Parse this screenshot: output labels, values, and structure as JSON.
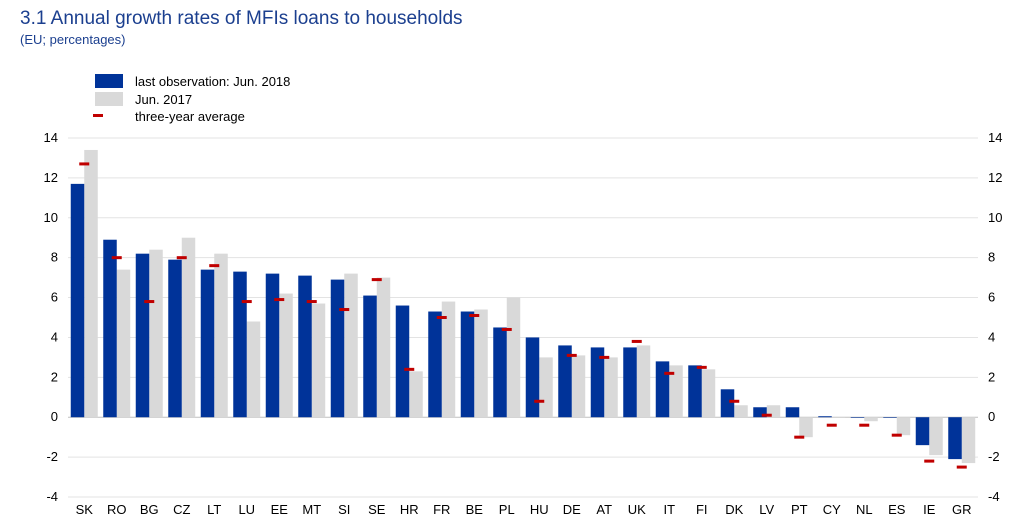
{
  "chart_data": {
    "type": "bar",
    "title": "3.1 Annual growth rates of MFIs loans to households",
    "subtitle": "(EU; percentages)",
    "xlabel": "",
    "ylabel": "",
    "ylim": [
      -4,
      14
    ],
    "yticks": [
      -4,
      -2,
      0,
      2,
      4,
      6,
      8,
      10,
      12,
      14
    ],
    "grid": true,
    "legend_placement": "top-left",
    "categories": [
      "SK",
      "RO",
      "BG",
      "CZ",
      "LT",
      "LU",
      "EE",
      "MT",
      "SI",
      "SE",
      "HR",
      "FR",
      "BE",
      "PL",
      "HU",
      "DE",
      "AT",
      "UK",
      "IT",
      "FI",
      "DK",
      "LV",
      "PT",
      "CY",
      "NL",
      "ES",
      "IE",
      "GR"
    ],
    "series": [
      {
        "name": "last observation: Jun. 2018",
        "color": "#003399",
        "marker": "bar",
        "values": [
          11.7,
          8.9,
          8.2,
          7.9,
          7.4,
          7.3,
          7.2,
          7.1,
          6.9,
          6.1,
          5.6,
          5.3,
          5.3,
          4.5,
          4.0,
          3.6,
          3.5,
          3.5,
          2.8,
          2.6,
          1.4,
          0.5,
          0.5,
          0.05,
          0.0,
          0.0,
          -1.4,
          -2.1
        ]
      },
      {
        "name": "Jun. 2017",
        "color": "#d9d9d9",
        "marker": "bar",
        "values": [
          13.4,
          7.4,
          8.4,
          9.0,
          8.2,
          4.8,
          6.2,
          5.7,
          7.2,
          7.0,
          2.3,
          5.8,
          5.4,
          6.0,
          3.0,
          3.1,
          3.0,
          3.6,
          2.6,
          2.4,
          0.6,
          0.6,
          -1.0,
          0.0,
          -0.2,
          -0.9,
          -1.9,
          -2.3
        ]
      },
      {
        "name": "three-year average",
        "color": "#c00000",
        "marker": "dash",
        "values": [
          12.7,
          8.0,
          5.8,
          8.0,
          7.6,
          5.8,
          5.9,
          5.8,
          5.4,
          6.9,
          2.4,
          5.0,
          5.1,
          4.4,
          0.8,
          3.1,
          3.0,
          3.8,
          2.2,
          2.5,
          0.8,
          0.1,
          -1.0,
          -0.4,
          -0.4,
          -0.9,
          -2.2,
          -2.5
        ]
      }
    ]
  }
}
